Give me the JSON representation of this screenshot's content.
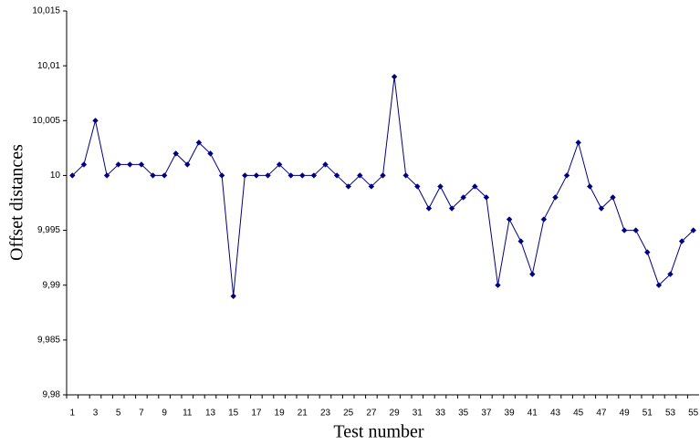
{
  "chart_data": {
    "type": "line",
    "xlabel": "Test number",
    "ylabel": "Offset distances",
    "categories": [
      "1",
      null,
      "3",
      null,
      "5",
      null,
      "7",
      null,
      "9",
      null,
      "11",
      null,
      "13",
      null,
      "15",
      null,
      "17",
      null,
      "19",
      null,
      "21",
      null,
      "23",
      null,
      "25",
      null,
      "27",
      null,
      "29",
      null,
      "31",
      null,
      "33",
      null,
      "35",
      null,
      "37",
      null,
      "39",
      null,
      "41",
      null,
      "43",
      null,
      "45",
      null,
      "47",
      null,
      "49",
      null,
      "51",
      null,
      "53",
      null,
      "55"
    ],
    "series": [
      {
        "name": null,
        "color": "#000080",
        "values": [
          10.0,
          10.001,
          10.005,
          10.0,
          10.001,
          10.001,
          10.001,
          10.0,
          10.0,
          10.002,
          10.001,
          10.003,
          10.002,
          10.0,
          9.989,
          10.0,
          10.0,
          10.0,
          10.001,
          10.0,
          10.0,
          10.0,
          10.001,
          10.0,
          9.999,
          10.0,
          9.999,
          10.0,
          10.009,
          10.0,
          9.999,
          9.997,
          9.999,
          9.997,
          9.998,
          9.999,
          9.998,
          9.99,
          9.996,
          9.994,
          9.991,
          9.996,
          9.998,
          10.0,
          10.003,
          9.999,
          9.997,
          9.998,
          9.995,
          9.995,
          9.993,
          9.99,
          9.991,
          9.994,
          9.995
        ]
      }
    ],
    "ylim": [
      9.98,
      10.015
    ],
    "yticks": [
      {
        "value": 9.98,
        "label": "9,98"
      },
      {
        "value": 9.985,
        "label": "9,985"
      },
      {
        "value": 9.99,
        "label": "9,99"
      },
      {
        "value": 9.995,
        "label": "9,995"
      },
      10,
      {
        "value": 10.005,
        "label": "10,005"
      },
      {
        "value": 10.01,
        "label": "10,01"
      },
      {
        "value": 10.015,
        "label": "10,015"
      }
    ],
    "grid": false
  }
}
